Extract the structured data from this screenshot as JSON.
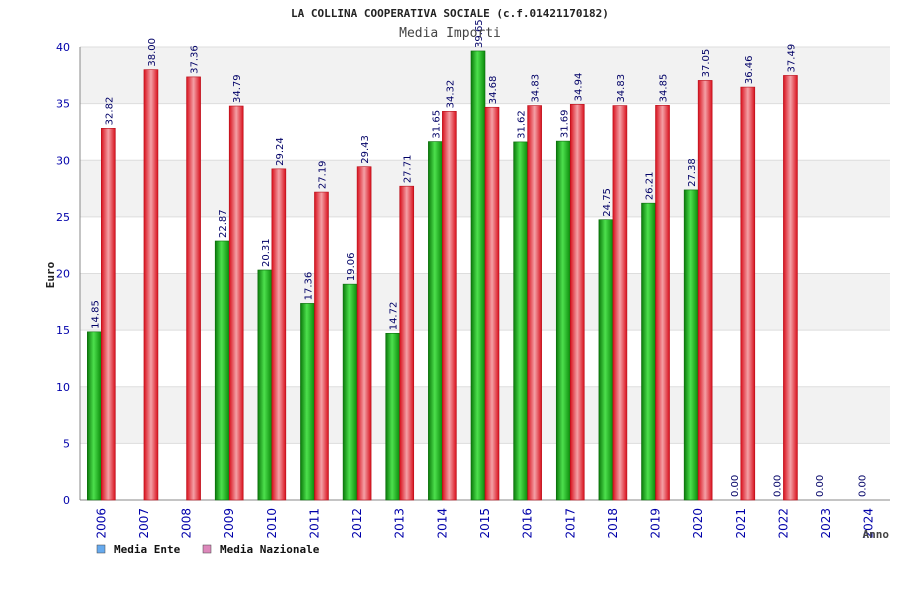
{
  "chart_data": {
    "type": "bar",
    "title": "LA COLLINA COOPERATIVA SOCIALE (c.f.01421170182)",
    "subtitle": "Media Importi",
    "xlabel": "Anno",
    "ylabel": "Euro",
    "ylim": [
      0,
      40
    ],
    "yticks": [
      "0",
      "5",
      "10",
      "15",
      "20",
      "25",
      "30",
      "35",
      "40"
    ],
    "grid": true,
    "legend_position": "bottom-left",
    "categories": [
      "2006",
      "2007",
      "2008",
      "2009",
      "2010",
      "2011",
      "2012",
      "2013",
      "2014",
      "2015",
      "2016",
      "2017",
      "2018",
      "2019",
      "2020",
      "2021",
      "2022",
      "2023",
      "2024"
    ],
    "series": [
      {
        "name": "Media Ente",
        "color": "#1aa01a",
        "legend_color": "#66aaee",
        "values": [
          14.85,
          null,
          null,
          22.87,
          20.31,
          17.36,
          19.06,
          14.72,
          31.65,
          39.65,
          31.62,
          31.69,
          24.75,
          26.21,
          27.38,
          0.0,
          0.0,
          0.0,
          0.0
        ],
        "labels": [
          "14.85",
          "",
          "",
          "22.87",
          "20.31",
          "17.36",
          "19.06",
          "14.72",
          "31.65",
          "39.65",
          "31.62",
          "31.69",
          "24.75",
          "26.21",
          "27.38",
          "0.00",
          "0.00",
          "0.00",
          "0.00"
        ]
      },
      {
        "name": "Media Nazionale",
        "color": "#e8222e",
        "legend_color": "#dd88bb",
        "values": [
          32.82,
          38.0,
          37.36,
          34.79,
          29.24,
          27.19,
          29.43,
          27.71,
          34.32,
          34.68,
          34.83,
          34.94,
          34.83,
          34.85,
          37.05,
          36.46,
          37.49,
          null,
          null
        ],
        "labels": [
          "32.82",
          "38.00",
          "37.36",
          "34.79",
          "29.24",
          "27.19",
          "29.43",
          "27.71",
          "34.32",
          "34.68",
          "34.83",
          "34.94",
          "34.83",
          "34.85",
          "37.05",
          "36.46",
          "37.49",
          "",
          ""
        ]
      }
    ]
  }
}
